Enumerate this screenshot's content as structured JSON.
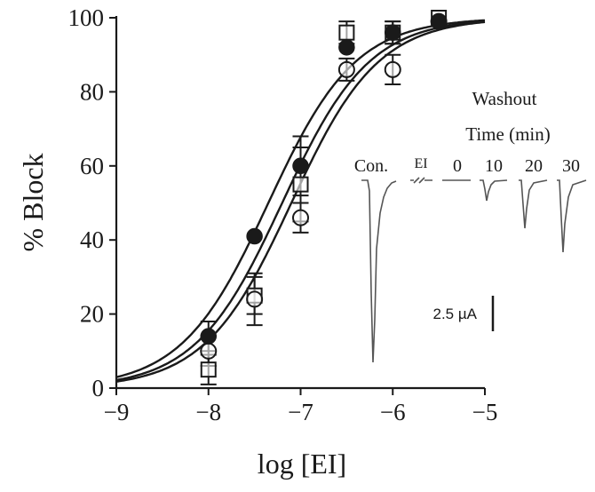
{
  "chart_data": {
    "type": "scatter",
    "xlabel": "log [EI]",
    "ylabel": "% Block",
    "xlim": [
      -9,
      -5
    ],
    "ylim": [
      0,
      100
    ],
    "x_ticks": [
      "−9",
      "−8",
      "−7",
      "−6",
      "−5"
    ],
    "y_ticks": [
      "0",
      "20",
      "40",
      "60",
      "80",
      "100"
    ],
    "series": [
      {
        "marker": "filled-circle",
        "x": [
          -8,
          -7.5,
          -7,
          -6.5,
          -6,
          -5.5
        ],
        "y": [
          14,
          41,
          60,
          92,
          96,
          99
        ],
        "err": [
          4,
          0,
          8,
          0,
          3,
          0
        ],
        "fit": {
          "logIC50": -7.35,
          "hill": 0.92
        }
      },
      {
        "marker": "open-square",
        "x": [
          -8,
          -7.5,
          -7,
          -6.5,
          -6,
          -5.5
        ],
        "y": [
          5,
          25,
          55,
          96,
          96,
          100
        ],
        "err": [
          4,
          5,
          10,
          3,
          3,
          0
        ],
        "fit": {
          "logIC50": -7.2,
          "hill": 0.92
        }
      },
      {
        "marker": "open-circle",
        "x": [
          -8,
          -7.5,
          -7,
          -6.5,
          -6,
          -5.5
        ],
        "y": [
          10,
          24,
          46,
          86,
          86,
          99
        ],
        "err": [
          4,
          7,
          4,
          3,
          4,
          0
        ],
        "fit": {
          "logIC50": -7.1,
          "hill": 0.92
        }
      }
    ]
  },
  "inset": {
    "title_line1": "Washout",
    "title_line2": "Time (min)",
    "labels": [
      "Con.",
      "EI",
      "0",
      "10",
      "20",
      "30"
    ],
    "scale_bar": "2.5 µA",
    "trace_depths_uA": [
      13.5,
      0,
      0.8,
      3.8,
      5.3
    ]
  }
}
